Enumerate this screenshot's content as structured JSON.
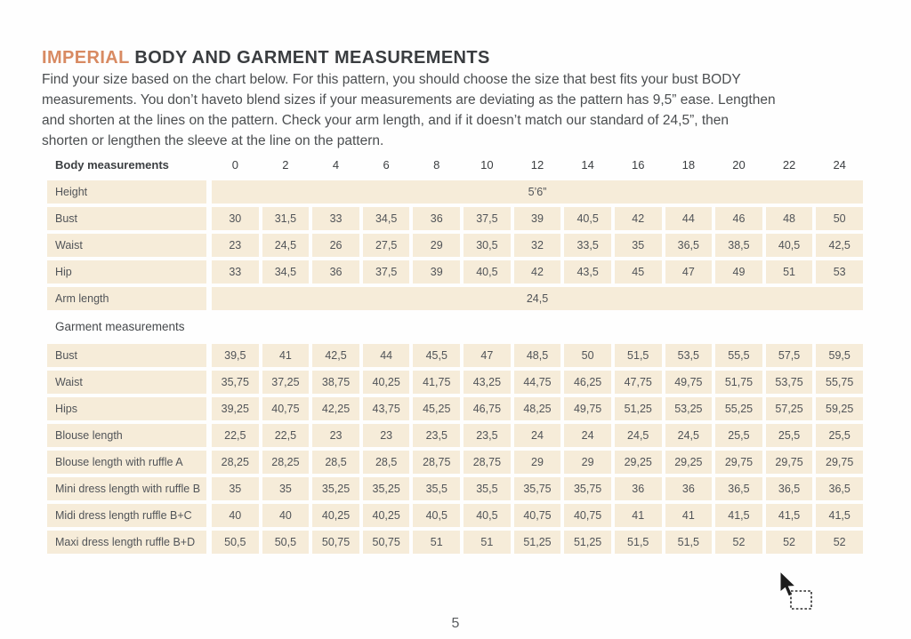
{
  "colors": {
    "accent": "#d88a62",
    "row_bg": "#f6ecd9"
  },
  "title": {
    "highlight": "IMPERIAL",
    "rest": " BODY AND GARMENT MEASUREMENTS"
  },
  "intro_lines": [
    "Find your size based on the chart below. For this pattern, you should choose the size that best fits your bust BODY",
    "measurements. You don’t haveto blend sizes if your measurements are deviating as the pattern has 9,5” ease. Lengthen",
    "and shorten at the lines on the pattern. Check your arm length, and if it doesn’t match our standard of 24,5”, then",
    "shorten or lengthen the sleeve at the line on the pattern."
  ],
  "table": {
    "header": {
      "label": "Body measurements",
      "sizes": [
        "0",
        "2",
        "4",
        "6",
        "8",
        "10",
        "12",
        "14",
        "16",
        "18",
        "20",
        "22",
        "24"
      ]
    },
    "body_rows": [
      {
        "label": "Height",
        "span": "5’6”"
      },
      {
        "label": "Bust",
        "values": [
          "30",
          "31,5",
          "33",
          "34,5",
          "36",
          "37,5",
          "39",
          "40,5",
          "42",
          "44",
          "46",
          "48",
          "50"
        ]
      },
      {
        "label": "Waist",
        "values": [
          "23",
          "24,5",
          "26",
          "27,5",
          "29",
          "30,5",
          "32",
          "33,5",
          "35",
          "36,5",
          "38,5",
          "40,5",
          "42,5"
        ]
      },
      {
        "label": "Hip",
        "values": [
          "33",
          "34,5",
          "36",
          "37,5",
          "39",
          "40,5",
          "42",
          "43,5",
          "45",
          "47",
          "49",
          "51",
          "53"
        ]
      },
      {
        "label": "Arm length",
        "span": "24,5"
      }
    ],
    "garment_section_label": "Garment measurements",
    "garment_rows": [
      {
        "label": "Bust",
        "values": [
          "39,5",
          "41",
          "42,5",
          "44",
          "45,5",
          "47",
          "48,5",
          "50",
          "51,5",
          "53,5",
          "55,5",
          "57,5",
          "59,5"
        ]
      },
      {
        "label": "Waist",
        "values": [
          "35,75",
          "37,25",
          "38,75",
          "40,25",
          "41,75",
          "43,25",
          "44,75",
          "46,25",
          "47,75",
          "49,75",
          "51,75",
          "53,75",
          "55,75"
        ]
      },
      {
        "label": "Hips",
        "values": [
          "39,25",
          "40,75",
          "42,25",
          "43,75",
          "45,25",
          "46,75",
          "48,25",
          "49,75",
          "51,25",
          "53,25",
          "55,25",
          "57,25",
          "59,25"
        ]
      },
      {
        "label": "Blouse length",
        "values": [
          "22,5",
          "22,5",
          "23",
          "23",
          "23,5",
          "23,5",
          "24",
          "24",
          "24,5",
          "24,5",
          "25,5",
          "25,5",
          "25,5"
        ]
      },
      {
        "label": "Blouse length with ruffle A",
        "values": [
          "28,25",
          "28,25",
          "28,5",
          "28,5",
          "28,75",
          "28,75",
          "29",
          "29",
          "29,25",
          "29,25",
          "29,75",
          "29,75",
          "29,75"
        ]
      },
      {
        "label": "Mini dress length with ruffle B",
        "values": [
          "35",
          "35",
          "35,25",
          "35,25",
          "35,5",
          "35,5",
          "35,75",
          "35,75",
          "36",
          "36",
          "36,5",
          "36,5",
          "36,5"
        ]
      },
      {
        "label": "Midi dress length ruffle B+C",
        "values": [
          "40",
          "40",
          "40,25",
          "40,25",
          "40,5",
          "40,5",
          "40,75",
          "40,75",
          "41",
          "41",
          "41,5",
          "41,5",
          "41,5"
        ]
      },
      {
        "label": "Maxi dress length ruffle B+D",
        "values": [
          "50,5",
          "50,5",
          "50,75",
          "50,75",
          "51",
          "51",
          "51,25",
          "51,25",
          "51,5",
          "51,5",
          "52",
          "52",
          "52"
        ]
      }
    ]
  },
  "page_number": "5",
  "icons": {
    "cursor": "region-select-cursor"
  }
}
